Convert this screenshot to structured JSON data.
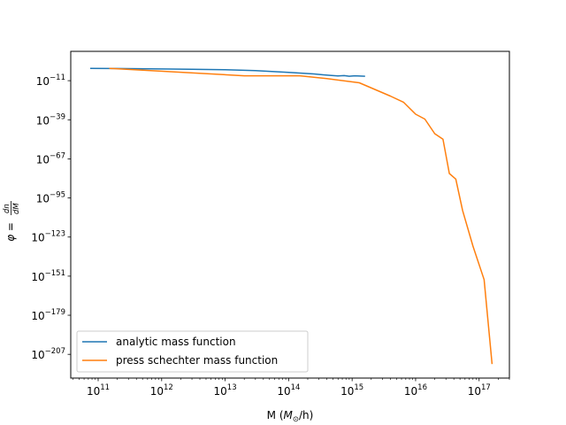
{
  "chart_data": {
    "type": "line",
    "xlabel": "M ($M_\\odot$/h)",
    "xlabel_parts": {
      "prefix": "M (",
      "sym": "M",
      "sub": "⊙",
      "suffix": "/h)"
    },
    "ylabel": "$\\phi = \\frac{dn}{dM}$",
    "ylabel_parts": {
      "lhs": "φ =",
      "num": "dn",
      "den": "dM"
    },
    "x_scale": "log",
    "y_scale": "log",
    "xlim": [
      37000000000.0,
      3e+17
    ],
    "ylim_exponent": [
      -224,
      10
    ],
    "x_ticks": [
      {
        "base": "10",
        "exp": "11",
        "value": 100000000000.0
      },
      {
        "base": "10",
        "exp": "12",
        "value": 1000000000000.0
      },
      {
        "base": "10",
        "exp": "13",
        "value": 10000000000000.0
      },
      {
        "base": "10",
        "exp": "14",
        "value": 100000000000000.0
      },
      {
        "base": "10",
        "exp": "15",
        "value": 1000000000000000.0
      },
      {
        "base": "10",
        "exp": "16",
        "value": 1e+16
      },
      {
        "base": "10",
        "exp": "17",
        "value": 1e+17
      }
    ],
    "y_ticks": [
      {
        "base": "10",
        "exp": "−11",
        "value": -11
      },
      {
        "base": "10",
        "exp": "−39",
        "value": -39
      },
      {
        "base": "10",
        "exp": "−67",
        "value": -67
      },
      {
        "base": "10",
        "exp": "−95",
        "value": -95
      },
      {
        "base": "10",
        "exp": "−123",
        "value": -123
      },
      {
        "base": "10",
        "exp": "−151",
        "value": -151
      },
      {
        "base": "10",
        "exp": "−179",
        "value": -179
      },
      {
        "base": "10",
        "exp": "−207",
        "value": -207
      }
    ],
    "legend_position": "lower-left",
    "grid": false,
    "series": [
      {
        "name": "analytic mass function",
        "color": "#1f77b4",
        "x": [
          75000000000.0,
          200000000000.0,
          1000000000000.0,
          3000000000000.0,
          10000000000000.0,
          30000000000000.0,
          100000000000000.0,
          250000000000000.0,
          350000000000000.0,
          450000000000000.0,
          600000000000000.0,
          750000000000000.0,
          900000000000000.0,
          1100000000000000.0,
          1600000000000000.0
        ],
        "log10_y": [
          -2.2,
          -2.3,
          -2.6,
          -2.9,
          -3.2,
          -3.8,
          -5.0,
          -6.2,
          -6.8,
          -7.2,
          -7.6,
          -7.4,
          -7.8,
          -7.5,
          -7.8
        ]
      },
      {
        "name": "press schechter mass function",
        "color": "#ff7f0e",
        "x": [
          150000000000.0,
          20000000000000.0,
          150000000000000.0,
          400000000000000.0,
          1300000000000000.0,
          4000000000000000.0,
          6500000000000000.0,
          1e+16,
          1.4e+16,
          2e+16,
          2.7e+16,
          3.4e+16,
          4.3e+16,
          5.5e+16,
          8e+16,
          1.2e+17,
          1.6e+17
        ],
        "log10_y": [
          -2.2,
          -7.5,
          -7.5,
          -9.5,
          -12.5,
          -22,
          -26.5,
          -35,
          -38.5,
          -49,
          -53,
          -77.5,
          -81.5,
          -104,
          -129.5,
          -153.5,
          -214
        ]
      }
    ]
  }
}
